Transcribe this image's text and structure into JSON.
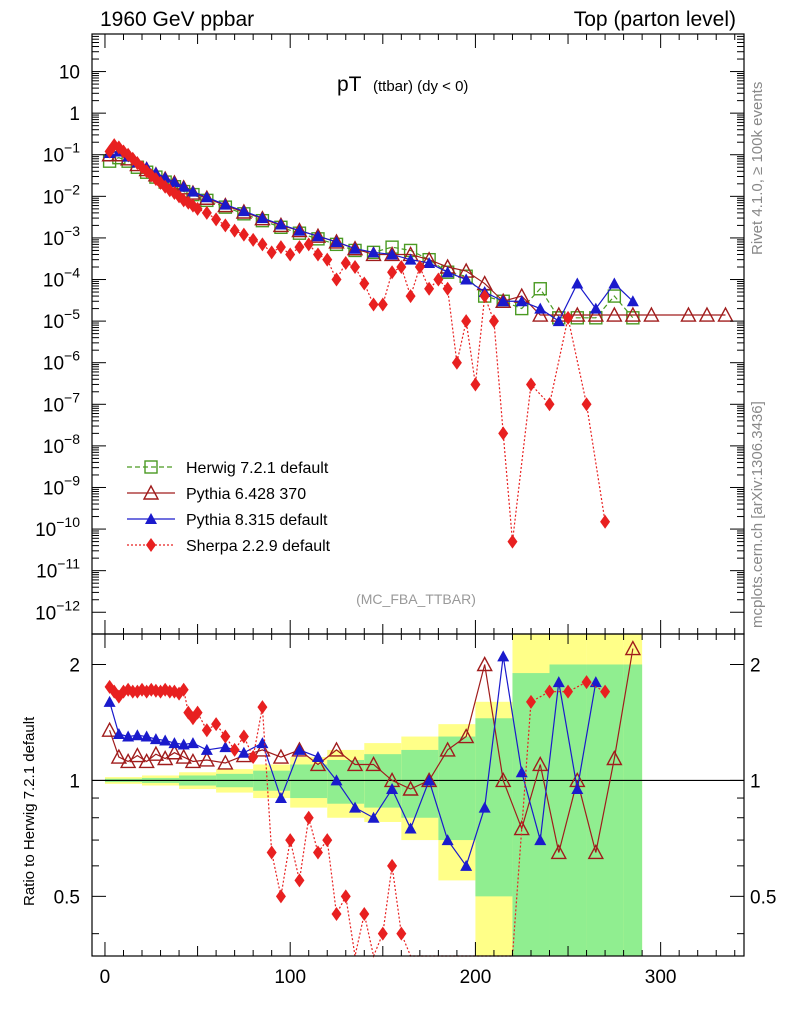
{
  "header": {
    "left": "1960 GeV ppbar",
    "right": "Top (parton level)"
  },
  "side": {
    "rivet": "Rivet 4.1.0, ≥ 100k events",
    "mcplots": "mcplots.cern.ch [arXiv:1306.3436]"
  },
  "chart_data": [
    {
      "type": "line",
      "title_main": "pT",
      "title_sub": "(ttbar) (dy < 0)",
      "watermark": "(MC_FBA_TTBAR)",
      "xlabel": "",
      "ylabel": "",
      "yscale": "log",
      "ylim": [
        3e-13,
        80
      ],
      "xlim": [
        -7,
        345
      ],
      "ytick_mantissa": "10",
      "ytick_labels": [
        {
          "v": 10,
          "text": "10"
        },
        {
          "v": 1,
          "text": "1"
        },
        {
          "v": 0.1,
          "exp": "−1"
        },
        {
          "v": 0.01,
          "exp": "−2"
        },
        {
          "v": 0.001,
          "exp": "−3"
        },
        {
          "v": 0.0001,
          "exp": "−4"
        },
        {
          "v": 1e-05,
          "exp": "−5"
        },
        {
          "v": 1e-06,
          "exp": "−6"
        },
        {
          "v": 1e-07,
          "exp": "−7"
        },
        {
          "v": 1e-08,
          "exp": "−8"
        },
        {
          "v": 1e-09,
          "exp": "−9"
        },
        {
          "v": 1e-10,
          "exp": "−10"
        },
        {
          "v": 1e-11,
          "exp": "−11"
        },
        {
          "v": 1e-12,
          "exp": "−12"
        }
      ],
      "legend": [
        {
          "label": "Herwig 7.2.1 default",
          "color": "#4a9a22",
          "marker": "open-square",
          "dash": "5,3"
        },
        {
          "label": "Pythia 6.428 370",
          "color": "#a01c1c",
          "marker": "open-triangle",
          "dash": ""
        },
        {
          "label": "Pythia 8.315 default",
          "color": "#1a1acc",
          "marker": "filled-triangle",
          "dash": ""
        },
        {
          "label": "Sherpa 2.2.9 default",
          "color": "#e82020",
          "marker": "filled-diamond",
          "dash": "2,2"
        }
      ],
      "series": [
        {
          "name": "Herwig 7.2.1 default",
          "color": "#4a9a22",
          "x": [
            2.5,
            7.5,
            12.5,
            17.5,
            22.5,
            27.5,
            32.5,
            37.5,
            42.5,
            47.5,
            55,
            65,
            75,
            85,
            95,
            105,
            115,
            125,
            135,
            145,
            155,
            165,
            175,
            185,
            195,
            205,
            215,
            225,
            235,
            245,
            255,
            265,
            275,
            285
          ],
          "y": [
            0.07,
            0.085,
            0.07,
            0.05,
            0.038,
            0.029,
            0.022,
            0.017,
            0.013,
            0.011,
            0.008,
            0.0055,
            0.0038,
            0.0026,
            0.0018,
            0.0013,
            0.00095,
            0.0007,
            0.0005,
            0.00045,
            0.0006,
            0.0005,
            0.0003,
            0.00015,
            0.00012,
            4e-05,
            3e-05,
            2e-05,
            6e-05,
            1.2e-05,
            1.2e-05,
            1.2e-05,
            4e-05,
            1.2e-05
          ]
        },
        {
          "name": "Pythia 6.428 370",
          "color": "#a01c1c",
          "x": [
            2.5,
            7.5,
            12.5,
            17.5,
            22.5,
            27.5,
            32.5,
            37.5,
            42.5,
            47.5,
            55,
            65,
            75,
            85,
            95,
            105,
            115,
            125,
            135,
            145,
            155,
            165,
            175,
            185,
            195,
            205,
            215,
            225,
            235,
            245,
            255,
            265,
            275,
            285,
            295,
            315,
            325,
            335
          ],
          "y": [
            0.1,
            0.1,
            0.08,
            0.058,
            0.044,
            0.033,
            0.026,
            0.021,
            0.016,
            0.012,
            0.009,
            0.006,
            0.0042,
            0.0029,
            0.002,
            0.0015,
            0.0011,
            0.0008,
            0.00055,
            0.0004,
            0.0004,
            0.0004,
            0.0003,
            0.0002,
            0.00016,
            8e-05,
            3e-05,
            4e-05,
            1.4e-05,
            1.4e-05,
            1.4e-05,
            1.4e-05,
            1.4e-05,
            1.4e-05,
            1.4e-05,
            1.4e-05,
            1.4e-05,
            1.4e-05
          ]
        },
        {
          "name": "Pythia 8.315 default",
          "color": "#1a1acc",
          "x": [
            2.5,
            7.5,
            12.5,
            17.5,
            22.5,
            27.5,
            32.5,
            37.5,
            42.5,
            47.5,
            55,
            65,
            75,
            85,
            95,
            105,
            115,
            125,
            135,
            145,
            155,
            165,
            175,
            185,
            195,
            205,
            215,
            225,
            235,
            245,
            255,
            265,
            275,
            285
          ],
          "y": [
            0.11,
            0.12,
            0.09,
            0.065,
            0.05,
            0.037,
            0.028,
            0.022,
            0.017,
            0.013,
            0.0095,
            0.0063,
            0.0044,
            0.003,
            0.0021,
            0.0015,
            0.0011,
            0.0008,
            0.00055,
            0.00045,
            0.0004,
            0.0003,
            0.00025,
            0.00015,
            0.0001,
            5e-05,
            3e-05,
            3e-05,
            2e-05,
            1e-05,
            8e-05,
            2e-05,
            8e-05,
            3e-05
          ]
        },
        {
          "name": "Sherpa 2.2.9 default",
          "color": "#e82020",
          "x": [
            2.5,
            5,
            7.5,
            10,
            12.5,
            15,
            17.5,
            20,
            22.5,
            25,
            27.5,
            30,
            32.5,
            35,
            37.5,
            40,
            42.5,
            45,
            47.5,
            50,
            55,
            60,
            65,
            70,
            75,
            80,
            85,
            90,
            95,
            100,
            105,
            110,
            115,
            120,
            125,
            130,
            135,
            140,
            145,
            150,
            155,
            160,
            165,
            170,
            175,
            180,
            185,
            190,
            195,
            200,
            205,
            210,
            215,
            220,
            230,
            240,
            250,
            260,
            270
          ],
          "y": [
            0.12,
            0.17,
            0.15,
            0.12,
            0.1,
            0.08,
            0.063,
            0.05,
            0.04,
            0.032,
            0.026,
            0.021,
            0.017,
            0.014,
            0.012,
            0.01,
            0.008,
            0.007,
            0.006,
            0.005,
            0.004,
            0.0028,
            0.002,
            0.0015,
            0.0012,
            0.0009,
            0.0007,
            0.00045,
            0.0006,
            0.0004,
            0.0006,
            0.0007,
            0.0004,
            0.0003,
            0.0001,
            0.00025,
            0.0002,
            8e-05,
            2.5e-05,
            2.5e-05,
            0.00015,
            0.0002,
            4e-05,
            0.0002,
            6e-05,
            0.0001,
            6e-05,
            1e-06,
            1e-05,
            3e-07,
            4e-05,
            1e-05,
            2e-08,
            5e-11,
            3e-07,
            1e-07,
            1.2e-05,
            1e-07,
            1.5e-10
          ]
        }
      ]
    },
    {
      "type": "line",
      "ylabel": "Ratio to Herwig 7.2.1 default",
      "ylim": [
        0.35,
        2.4
      ],
      "xlim": [
        -7,
        345
      ],
      "yticks": [
        {
          "v": 0.5,
          "text": "0.5"
        },
        {
          "v": 1,
          "text": "1"
        },
        {
          "v": 2,
          "text": "2"
        }
      ],
      "xticks": [
        {
          "v": 0,
          "text": "0"
        },
        {
          "v": 100,
          "text": "100"
        },
        {
          "v": 200,
          "text": "200"
        },
        {
          "v": 300,
          "text": "300"
        }
      ],
      "reference_line": 1,
      "bands": [
        {
          "name": "herwig-stat",
          "x": [
            0,
            20,
            40,
            60,
            80,
            100,
            120,
            140,
            160,
            180,
            200,
            220,
            240,
            260,
            280,
            290
          ],
          "lo_yellow": [
            0.98,
            0.97,
            0.95,
            0.93,
            0.9,
            0.85,
            0.8,
            0.78,
            0.7,
            0.55,
            0.35,
            0.35,
            0.35,
            0.35,
            0.35,
            0.35
          ],
          "hi_yellow": [
            1.02,
            1.03,
            1.05,
            1.07,
            1.1,
            1.15,
            1.2,
            1.25,
            1.3,
            1.4,
            1.6,
            2.4,
            2.4,
            2.4,
            2.4,
            2.4
          ],
          "lo_green": [
            0.99,
            0.985,
            0.97,
            0.96,
            0.94,
            0.9,
            0.87,
            0.85,
            0.8,
            0.7,
            0.5,
            0.35,
            0.35,
            0.35,
            0.35,
            0.35
          ],
          "hi_green": [
            1.01,
            1.015,
            1.03,
            1.04,
            1.06,
            1.1,
            1.13,
            1.17,
            1.2,
            1.3,
            1.45,
            1.9,
            2.0,
            2.0,
            2.0,
            2.0
          ]
        }
      ],
      "series": [
        {
          "name": "Pythia 6.428 370",
          "color": "#a01c1c",
          "x": [
            2.5,
            7.5,
            12.5,
            17.5,
            22.5,
            27.5,
            32.5,
            37.5,
            42.5,
            47.5,
            55,
            65,
            75,
            85,
            95,
            105,
            115,
            125,
            135,
            145,
            155,
            165,
            175,
            185,
            195,
            205,
            215,
            225,
            235,
            245,
            255,
            265,
            275,
            285
          ],
          "y": [
            1.35,
            1.15,
            1.12,
            1.16,
            1.12,
            1.17,
            1.14,
            1.18,
            1.15,
            1.12,
            1.13,
            1.11,
            1.16,
            1.2,
            1.15,
            1.2,
            1.1,
            1.2,
            1.1,
            1.1,
            1.0,
            0.95,
            1.0,
            1.2,
            1.3,
            2.0,
            1.0,
            0.75,
            1.1,
            0.65,
            1.0,
            0.65,
            1.14,
            2.2
          ]
        },
        {
          "name": "Pythia 8.315 default",
          "color": "#1a1acc",
          "x": [
            2.5,
            7.5,
            12.5,
            17.5,
            22.5,
            27.5,
            32.5,
            37.5,
            42.5,
            47.5,
            55,
            65,
            75,
            85,
            95,
            105,
            115,
            125,
            135,
            145,
            155,
            165,
            175,
            185,
            195,
            205,
            215,
            225,
            235,
            245,
            255,
            265
          ],
          "y": [
            1.6,
            1.32,
            1.3,
            1.31,
            1.3,
            1.28,
            1.27,
            1.25,
            1.24,
            1.25,
            1.2,
            1.22,
            1.18,
            1.25,
            0.9,
            1.2,
            1.15,
            1.0,
            0.85,
            0.8,
            0.95,
            0.75,
            1.0,
            0.7,
            0.6,
            0.85,
            2.1,
            1.05,
            0.7,
            1.8,
            0.95,
            1.8
          ]
        },
        {
          "name": "Sherpa 2.2.9 default",
          "color": "#e82020",
          "x": [
            2.5,
            5,
            7.5,
            10,
            12.5,
            15,
            17.5,
            20,
            22.5,
            25,
            27.5,
            30,
            32.5,
            35,
            37.5,
            40,
            42.5,
            45,
            47.5,
            50,
            55,
            60,
            65,
            70,
            75,
            80,
            85,
            90,
            95,
            100,
            105,
            110,
            115,
            120,
            125,
            130,
            135,
            140,
            145,
            150,
            155,
            160,
            165,
            170,
            175,
            180,
            185,
            190,
            195,
            200,
            210,
            220,
            230,
            240,
            250,
            260,
            270
          ],
          "y": [
            1.75,
            1.7,
            1.65,
            1.7,
            1.72,
            1.7,
            1.7,
            1.72,
            1.7,
            1.72,
            1.71,
            1.7,
            1.72,
            1.7,
            1.7,
            1.68,
            1.72,
            1.5,
            1.45,
            1.5,
            1.35,
            1.4,
            1.3,
            1.2,
            1.3,
            1.15,
            1.55,
            0.65,
            0.5,
            0.7,
            0.55,
            0.8,
            0.65,
            0.7,
            0.45,
            0.5,
            0.35,
            0.45,
            0.35,
            0.4,
            0.6,
            0.4,
            0.35,
            0.35,
            0.35,
            0.35,
            0.35,
            0.35,
            0.35,
            0.35,
            0.35,
            0.35,
            1.6,
            1.7,
            1.7,
            1.8,
            1.7
          ]
        }
      ]
    }
  ]
}
